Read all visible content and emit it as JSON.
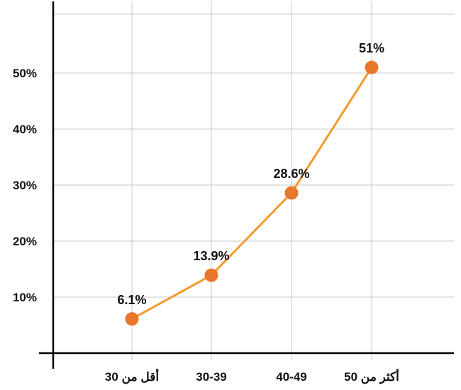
{
  "chart_data": {
    "type": "line",
    "title": "",
    "xlabel": "",
    "ylabel": "",
    "categories": [
      "أقل من 30",
      "30-39",
      "40-49",
      "أكثر من 50"
    ],
    "series": [
      {
        "values": [
          6.1,
          13.9,
          28.6,
          51
        ],
        "data_labels": [
          "6.1%",
          "13.9%",
          "28.6%",
          "51%"
        ]
      }
    ],
    "ylim": [
      0,
      60
    ],
    "y_ticks": [
      10,
      20,
      30,
      40,
      50
    ],
    "y_tick_labels": [
      "10%",
      "20%",
      "30%",
      "40%",
      "50%"
    ],
    "grid": true,
    "legend": "none",
    "colors": {
      "line": "#f39a2b",
      "marker": "#e8762b",
      "grid": "#c9c9c9",
      "axis": "#000000"
    }
  }
}
